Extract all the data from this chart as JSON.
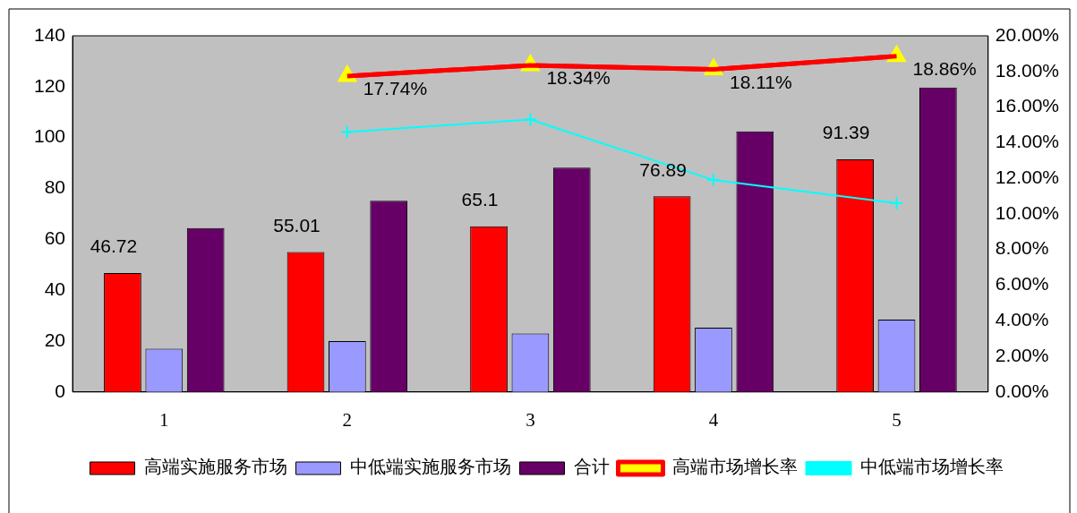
{
  "chart_data": {
    "type": "bar",
    "categories": [
      "1",
      "2",
      "3",
      "4",
      "5"
    ],
    "series": [
      {
        "name": "高端实施服务市场",
        "type": "bar",
        "color": "#ff0000",
        "values": [
          46.72,
          55.01,
          65.1,
          76.89,
          91.39
        ],
        "value_labels": [
          "46.72",
          "55.01",
          "65.1",
          "76.89",
          "91.39"
        ]
      },
      {
        "name": "中低端实施服务市场",
        "type": "bar",
        "color": "#9999ff",
        "values": [
          17,
          20,
          23,
          25.3,
          28.4
        ]
      },
      {
        "name": "合计",
        "type": "bar",
        "color": "#660066",
        "values": [
          64.4,
          75.2,
          88.2,
          102.4,
          119.7
        ]
      },
      {
        "name": "高端市场增长率",
        "type": "line",
        "axis": "y2",
        "color": "#ff0000",
        "marker": "triangle",
        "values": [
          null,
          17.74,
          18.34,
          18.11,
          18.86
        ],
        "value_labels": [
          null,
          "17.74%",
          "18.34%",
          "18.11%",
          "18.86%"
        ]
      },
      {
        "name": "中低端市场增长率",
        "type": "line",
        "axis": "y2",
        "color": "#00ffff",
        "marker": "cross",
        "values": [
          null,
          14.6,
          15.3,
          11.9,
          10.6
        ]
      }
    ],
    "ylim": [
      0,
      140
    ],
    "yticks": [
      0,
      20,
      40,
      60,
      80,
      100,
      120,
      140
    ],
    "y2lim": [
      0,
      20
    ],
    "y2ticks": [
      {
        "value": 0,
        "label": "0.00%"
      },
      {
        "value": 2,
        "label": "2.00%"
      },
      {
        "value": 4,
        "label": "4.00%"
      },
      {
        "value": 6,
        "label": "6.00%"
      },
      {
        "value": 8,
        "label": "8.00%"
      },
      {
        "value": 10,
        "label": "10.00%"
      },
      {
        "value": 12,
        "label": "12.00%"
      },
      {
        "value": 14,
        "label": "14.00%"
      },
      {
        "value": 16,
        "label": "16.00%"
      },
      {
        "value": 18,
        "label": "18.00%"
      },
      {
        "value": 20,
        "label": "20.00%"
      }
    ],
    "grid": false,
    "legend": "bottom"
  }
}
